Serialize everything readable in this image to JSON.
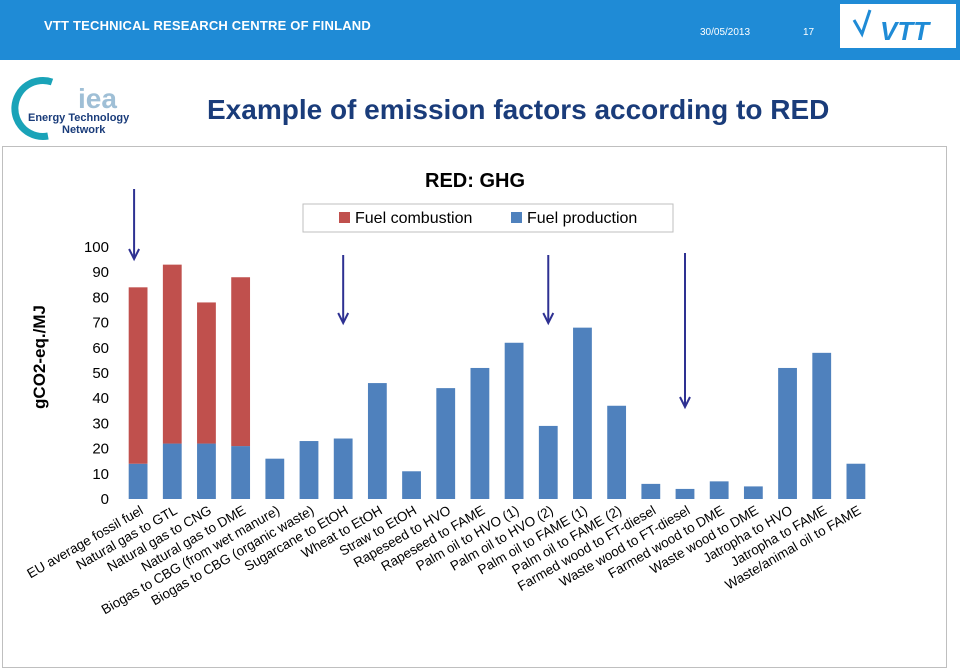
{
  "header": {
    "org_name": "VTT TECHNICAL RESEARCH CENTRE OF FINLAND",
    "date": "30/05/2013",
    "page_number": "17",
    "brand_color": "#1f8bd6"
  },
  "logos": {
    "vtt_text": "VTT",
    "iea_text": "iea",
    "iea_line1": "Energy Technology",
    "iea_line2": "Network"
  },
  "slide": {
    "title": "Example of emission factors according to RED"
  },
  "chart_data": {
    "type": "bar",
    "stacked": true,
    "title": "RED: GHG",
    "ylabel": "gCO2-eq./MJ",
    "xlabel": "",
    "ylim": [
      0,
      100
    ],
    "yticks": [
      0,
      10,
      20,
      30,
      40,
      50,
      60,
      70,
      80,
      90,
      100
    ],
    "legend_position": "top-center",
    "grid": false,
    "categories": [
      "EU average fossil fuel",
      "Natural gas to GTL",
      "Natural gas to CNG",
      "Natural gas to DME",
      "Biogas to CBG (from wet manure)",
      "Biogas to CBG (organic waste)",
      "Sugarcane to EtOH",
      "Wheat to EtOH",
      "Straw to EtOH",
      "Rapeseed to HVO",
      "Rapeseed to FAME",
      "Palm oil to HVO (1)",
      "Palm oil to HVO (2)",
      "Palm oil to FAME (1)",
      "Palm oil to FAME (2)",
      "Farmed wood to FT-diesel",
      "Waste wood to FT-diesel",
      "Farmed wood to DME",
      "Waste wood to DME",
      "Jatropha to HVO",
      "Jatropha to FAME",
      "Waste/animal oil to FAME"
    ],
    "series": [
      {
        "name": "Fuel production",
        "color": "#4f81bd",
        "values": [
          14,
          22,
          22,
          21,
          16,
          23,
          24,
          46,
          11,
          44,
          52,
          62,
          29,
          68,
          37,
          6,
          4,
          7,
          5,
          52,
          58,
          14
        ]
      },
      {
        "name": "Fuel combustion",
        "color": "#c0504d",
        "values": [
          70,
          71,
          56,
          67,
          0,
          0,
          0,
          0,
          0,
          0,
          0,
          0,
          0,
          0,
          0,
          0,
          0,
          0,
          0,
          0,
          0,
          0
        ]
      }
    ],
    "legend_order": [
      "Fuel combustion",
      "Fuel production"
    ],
    "annotation_arrows": [
      "EU average fossil fuel",
      "Sugarcane to EtOH",
      "Palm oil to HVO (2)",
      "Waste wood to FT-diesel"
    ]
  }
}
